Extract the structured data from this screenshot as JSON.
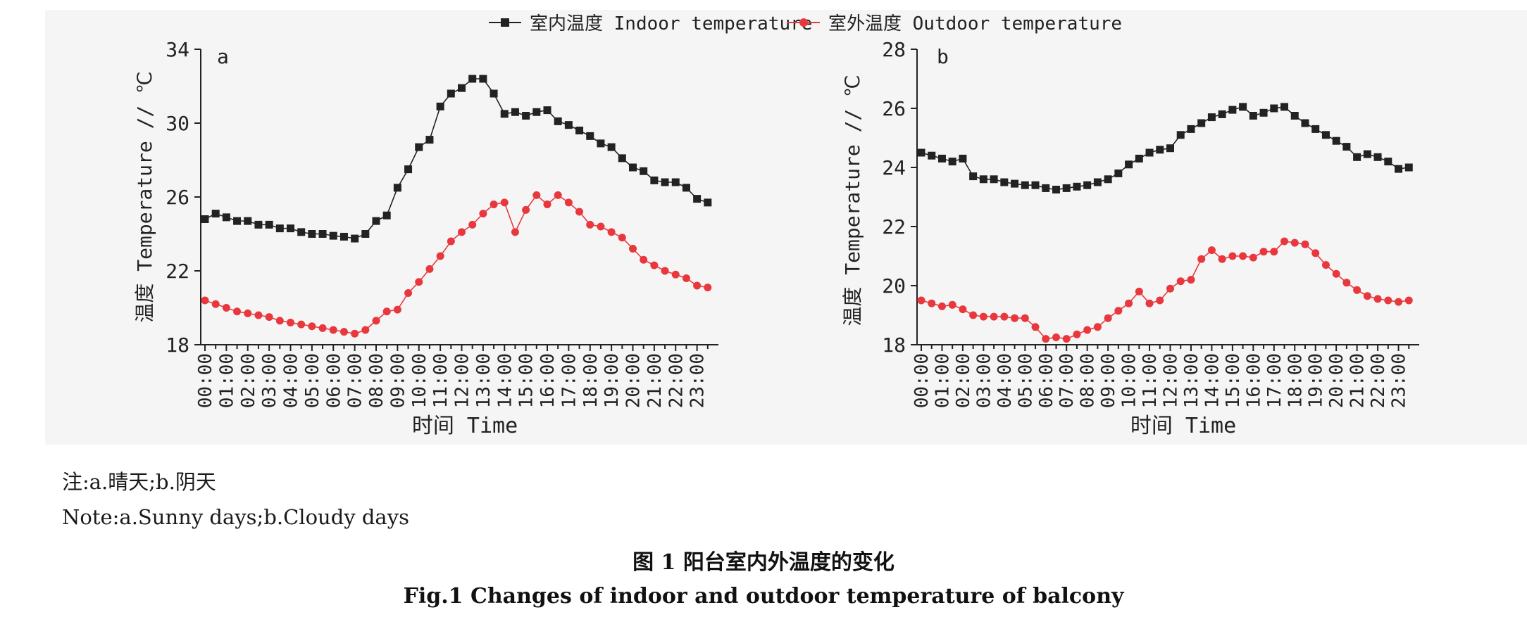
{
  "legend": {
    "indoor": "室内温度 Indoor temperature",
    "outdoor": "室外温度 Outdoor temperature"
  },
  "colors": {
    "indoor": "#222222",
    "outdoor": "#e8383d",
    "panel_bg": "#f5f5f5"
  },
  "chart_data": [
    {
      "type": "line",
      "panel_label": "a",
      "xlabel": "时间 Time",
      "ylabel": "温度 Temperature // ℃",
      "ylim": [
        18,
        34
      ],
      "yticks": [
        18,
        22,
        26,
        30,
        34
      ],
      "x_tick_labels": [
        "00:00",
        "01:00",
        "02:00",
        "03:00",
        "04:00",
        "05:00",
        "06:00",
        "07:00",
        "08:00",
        "09:00",
        "10:00",
        "11:00",
        "12:00",
        "13:00",
        "14:00",
        "15:00",
        "16:00",
        "17:00",
        "18:00",
        "19:00",
        "20:00",
        "21:00",
        "22:00",
        "23:00"
      ],
      "x_hours": [
        0,
        0.5,
        1,
        1.5,
        2,
        2.5,
        3,
        3.5,
        4,
        4.5,
        5,
        5.5,
        6,
        6.5,
        7,
        7.5,
        8,
        8.5,
        9,
        9.5,
        10,
        10.5,
        11,
        11.5,
        12,
        12.5,
        13,
        13.5,
        14,
        14.5,
        15,
        15.5,
        16,
        16.5,
        17,
        17.5,
        18,
        18.5,
        19,
        19.5,
        20,
        20.5,
        21,
        21.5,
        22,
        22.5,
        23,
        23.5
      ],
      "series": [
        {
          "name": "室内温度 Indoor temperature",
          "marker": "square",
          "values": [
            24.8,
            25.1,
            24.9,
            24.7,
            24.7,
            24.5,
            24.5,
            24.3,
            24.3,
            24.1,
            24.0,
            24.0,
            23.9,
            23.85,
            23.75,
            24.0,
            24.7,
            25.0,
            26.5,
            27.5,
            28.7,
            29.1,
            30.9,
            31.6,
            31.9,
            32.4,
            32.4,
            31.6,
            30.5,
            30.6,
            30.4,
            30.6,
            30.7,
            30.1,
            29.9,
            29.6,
            29.3,
            28.9,
            28.7,
            28.1,
            27.6,
            27.4,
            26.9,
            26.8,
            26.8,
            26.5,
            25.9,
            25.7
          ]
        },
        {
          "name": "室外温度 Outdoor temperature",
          "marker": "circle",
          "values": [
            20.4,
            20.2,
            20.0,
            19.8,
            19.7,
            19.6,
            19.5,
            19.3,
            19.2,
            19.1,
            19.0,
            18.9,
            18.8,
            18.7,
            18.6,
            18.8,
            19.3,
            19.8,
            19.9,
            20.8,
            21.4,
            22.1,
            22.8,
            23.6,
            24.1,
            24.5,
            25.1,
            25.6,
            25.7,
            24.1,
            25.3,
            26.1,
            25.6,
            26.1,
            25.7,
            25.2,
            24.5,
            24.4,
            24.1,
            23.8,
            23.2,
            22.6,
            22.3,
            22.0,
            21.8,
            21.6,
            21.2,
            21.1
          ]
        }
      ]
    },
    {
      "type": "line",
      "panel_label": "b",
      "xlabel": "时间 Time",
      "ylabel": "温度 Temperature // ℃",
      "ylim": [
        18,
        28
      ],
      "yticks": [
        18,
        20,
        22,
        24,
        26,
        28
      ],
      "x_tick_labels": [
        "00:00",
        "01:00",
        "02:00",
        "03:00",
        "04:00",
        "05:00",
        "06:00",
        "07:00",
        "08:00",
        "09:00",
        "10:00",
        "11:00",
        "12:00",
        "13:00",
        "14:00",
        "15:00",
        "16:00",
        "17:00",
        "18:00",
        "19:00",
        "20:00",
        "21:00",
        "22:00",
        "23:00"
      ],
      "x_hours": [
        0,
        0.5,
        1,
        1.5,
        2,
        2.5,
        3,
        3.5,
        4,
        4.5,
        5,
        5.5,
        6,
        6.5,
        7,
        7.5,
        8,
        8.5,
        9,
        9.5,
        10,
        10.5,
        11,
        11.5,
        12,
        12.5,
        13,
        13.5,
        14,
        14.5,
        15,
        15.5,
        16,
        16.5,
        17,
        17.5,
        18,
        18.5,
        19,
        19.5,
        20,
        20.5,
        21,
        21.5,
        22,
        22.5,
        23,
        23.5
      ],
      "series": [
        {
          "name": "室内温度 Indoor temperature",
          "marker": "square",
          "values": [
            24.5,
            24.4,
            24.3,
            24.2,
            24.3,
            23.7,
            23.6,
            23.6,
            23.5,
            23.45,
            23.4,
            23.4,
            23.3,
            23.25,
            23.3,
            23.35,
            23.4,
            23.5,
            23.6,
            23.8,
            24.1,
            24.3,
            24.5,
            24.6,
            24.65,
            25.1,
            25.3,
            25.5,
            25.7,
            25.8,
            25.95,
            26.05,
            25.75,
            25.85,
            26.0,
            26.05,
            25.75,
            25.5,
            25.3,
            25.1,
            24.9,
            24.7,
            24.35,
            24.45,
            24.35,
            24.2,
            23.95,
            24.0
          ]
        },
        {
          "name": "室外温度 Outdoor temperature",
          "marker": "circle",
          "values": [
            19.5,
            19.4,
            19.3,
            19.35,
            19.2,
            19.0,
            18.95,
            18.95,
            18.95,
            18.9,
            18.9,
            18.6,
            18.2,
            18.25,
            18.2,
            18.35,
            18.5,
            18.6,
            18.9,
            19.15,
            19.4,
            19.8,
            19.4,
            19.5,
            19.9,
            20.15,
            20.2,
            20.9,
            21.2,
            20.9,
            21.0,
            21.0,
            20.95,
            21.15,
            21.15,
            21.5,
            21.45,
            21.4,
            21.1,
            20.7,
            20.4,
            20.1,
            19.85,
            19.65,
            19.55,
            19.5,
            19.45,
            19.5
          ]
        }
      ]
    }
  ],
  "note": {
    "zh": "注:a.晴天;b.阴天",
    "en": "Note:a.Sunny days;b.Cloudy days"
  },
  "caption": {
    "zh": "图 1    阳台室内外温度的变化",
    "en": "Fig.1    Changes of indoor and outdoor temperature of balcony"
  }
}
